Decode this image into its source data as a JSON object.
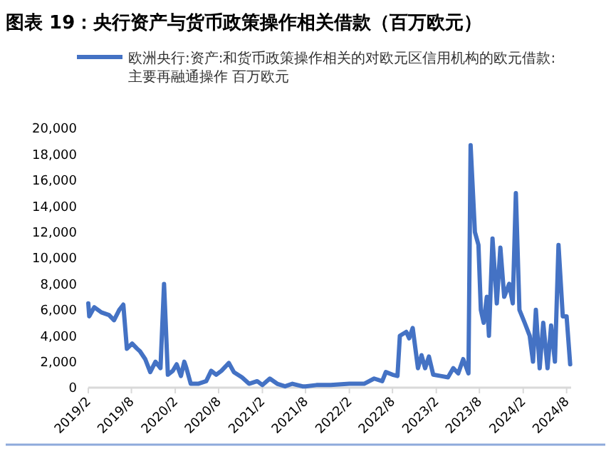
{
  "chart_data": {
    "type": "line",
    "title": "图表 19：央行资产与货币政策操作相关借款（百万欧元）",
    "legend": "top",
    "marker": "none",
    "line_style": "solid",
    "grid": false,
    "xlim": [
      "2019-02-01",
      "2024-08-20"
    ],
    "xticks": [
      {
        "value": "2019-02-01",
        "label": "2019/2"
      },
      {
        "value": "2019-08-01",
        "label": "2019/8"
      },
      {
        "value": "2020-02-01",
        "label": "2020/2"
      },
      {
        "value": "2020-08-01",
        "label": "2020/8"
      },
      {
        "value": "2021-02-01",
        "label": "2021/2"
      },
      {
        "value": "2021-08-01",
        "label": "2021/8"
      },
      {
        "value": "2022-02-01",
        "label": "2022/2"
      },
      {
        "value": "2022-08-01",
        "label": "2022/8"
      },
      {
        "value": "2023-02-01",
        "label": "2023/2"
      },
      {
        "value": "2023-08-01",
        "label": "2023/8"
      },
      {
        "value": "2024-02-01",
        "label": "2024/2"
      },
      {
        "value": "2024-08-01",
        "label": "2024/8"
      }
    ],
    "ylim": [
      0,
      20000
    ],
    "yticks": [
      {
        "value": 0,
        "label": "0"
      },
      {
        "value": 2000,
        "label": "2,000"
      },
      {
        "value": 4000,
        "label": "4,000"
      },
      {
        "value": 6000,
        "label": "6,000"
      },
      {
        "value": 8000,
        "label": "8,000"
      },
      {
        "value": 10000,
        "label": "10,000"
      },
      {
        "value": 12000,
        "label": "12,000"
      },
      {
        "value": 14000,
        "label": "14,000"
      },
      {
        "value": 16000,
        "label": "16,000"
      },
      {
        "value": 18000,
        "label": "18,000"
      },
      {
        "value": 20000,
        "label": "20,000"
      }
    ],
    "x": [
      "2019-02-01",
      "2019-02-05",
      "2019-02-26",
      "2019-03-28",
      "2019-04-29",
      "2019-05-20",
      "2019-06-11",
      "2019-06-28",
      "2019-07-13",
      "2019-08-04",
      "2019-08-25",
      "2019-09-06",
      "2019-09-28",
      "2019-10-19",
      "2019-11-10",
      "2019-12-01",
      "2019-12-16",
      "2020-01-01",
      "2020-01-22",
      "2020-02-07",
      "2020-02-25",
      "2020-03-10",
      "2020-03-19",
      "2020-04-06",
      "2020-05-07",
      "2020-06-10",
      "2020-07-01",
      "2020-07-22",
      "2020-08-13",
      "2020-09-13",
      "2020-10-04",
      "2020-11-07",
      "2020-12-07",
      "2021-01-10",
      "2021-02-01",
      "2021-03-04",
      "2021-04-04",
      "2021-05-07",
      "2021-06-07",
      "2021-07-19",
      "2021-08-01",
      "2021-09-16",
      "2021-11-15",
      "2022-02-01",
      "2022-04-04",
      "2022-05-16",
      "2022-06-19",
      "2022-07-04",
      "2022-08-01",
      "2022-08-22",
      "2022-09-01",
      "2022-09-28",
      "2022-10-10",
      "2022-10-25",
      "2022-11-16",
      "2022-12-01",
      "2022-12-16",
      "2023-01-01",
      "2023-01-19",
      "2023-02-19",
      "2023-03-22",
      "2023-04-13",
      "2023-05-04",
      "2023-05-25",
      "2023-06-16",
      "2023-06-25",
      "2023-07-13",
      "2023-07-28",
      "2023-08-07",
      "2023-08-19",
      "2023-09-01",
      "2023-09-10",
      "2023-09-25",
      "2023-10-13",
      "2023-10-28",
      "2023-11-13",
      "2023-12-04",
      "2023-12-19",
      "2024-01-01",
      "2024-01-16",
      "2024-02-07",
      "2024-02-28",
      "2024-03-13",
      "2024-03-25",
      "2024-04-10",
      "2024-04-25",
      "2024-05-13",
      "2024-05-28",
      "2024-06-13",
      "2024-06-28",
      "2024-07-16",
      "2024-08-01",
      "2024-08-16"
    ],
    "series": [
      {
        "name": "欧洲央行:资产:和货币政策操作相关的对欧元区信用机构的欧元借款:主要再融通操作 百万欧元",
        "color": "#4472c4",
        "values": [
          6500,
          5500,
          6200,
          5800,
          5600,
          5200,
          6000,
          6400,
          3000,
          3400,
          3000,
          2800,
          2200,
          1200,
          2000,
          1500,
          8000,
          1000,
          1300,
          1800,
          900,
          2000,
          1500,
          300,
          300,
          500,
          1300,
          1000,
          1300,
          1900,
          1200,
          800,
          300,
          500,
          200,
          700,
          300,
          100,
          300,
          100,
          100,
          200,
          200,
          300,
          300,
          700,
          500,
          1200,
          1000,
          900,
          4000,
          4300,
          3800,
          4600,
          1500,
          2500,
          1500,
          2400,
          1000,
          900,
          800,
          1500,
          1100,
          2200,
          1100,
          18700,
          12000,
          11000,
          6000,
          5000,
          7000,
          4000,
          11500,
          6500,
          10800,
          7000,
          8000,
          6500,
          15000,
          6000,
          5000,
          4000,
          2000,
          6000,
          1500,
          5000,
          1500,
          4800,
          2000,
          11000,
          5500,
          5500,
          1800
        ]
      }
    ]
  }
}
